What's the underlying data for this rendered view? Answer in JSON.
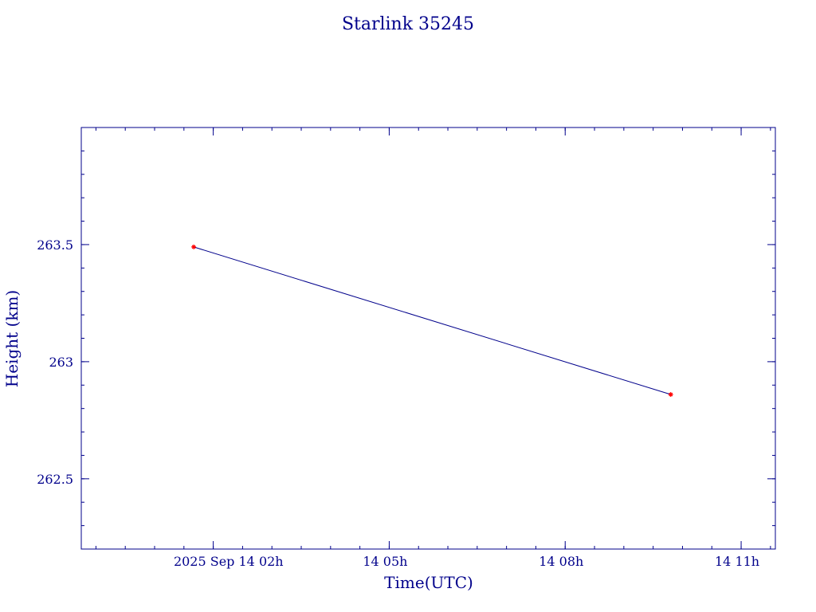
{
  "chart_data": {
    "type": "line",
    "title": "Starlink 35245",
    "xlabel": "Time(UTC)",
    "ylabel": "Height (km)",
    "x_tick_labels": [
      "2025 Sep 14  02h",
      "14  05h",
      "14  08h",
      "14  11h"
    ],
    "y_tick_labels": [
      "263.5",
      "263",
      "262.5"
    ],
    "y_ticks": [
      263.5,
      263.0,
      262.5
    ],
    "ylim": [
      262.2,
      264.0
    ],
    "xlim": [
      "2025-09-13T23:45Z",
      "2025-09-14T11:35Z"
    ],
    "x_ticks": [
      "2025-09-14T02:00Z",
      "2025-09-14T05:00Z",
      "2025-09-14T08:00Z",
      "2025-09-14T11:00Z"
    ],
    "x": [
      "2025-09-14T01:40Z",
      "2025-09-14T09:48Z"
    ],
    "y": [
      263.49,
      262.86
    ],
    "grid": false
  },
  "colors": {
    "axis": "#00008b",
    "line": "#00008b",
    "marker": "#ff0000"
  }
}
